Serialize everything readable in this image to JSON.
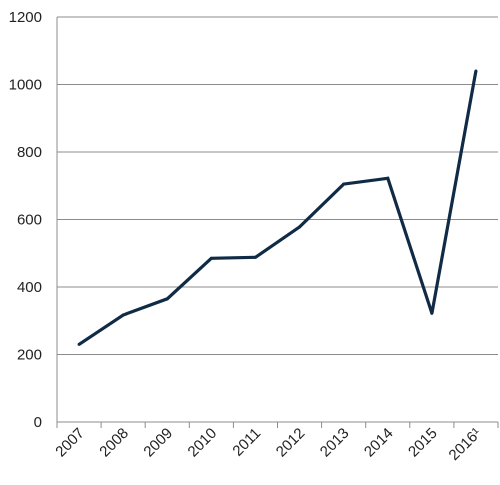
{
  "chart_data": {
    "type": "line",
    "title": "",
    "xlabel": "",
    "ylabel": "",
    "categories": [
      "2007",
      "2008",
      "2009",
      "2010",
      "2011",
      "2012",
      "2013",
      "2014",
      "2015",
      "2016¹"
    ],
    "series": [
      {
        "values": [
          230,
          317,
          365,
          485,
          488,
          578,
          705,
          722,
          322,
          1040
        ]
      }
    ],
    "ylim": [
      0,
      1200
    ],
    "yticks": [
      0,
      200,
      400,
      600,
      800,
      1000,
      1200
    ],
    "grid": true,
    "legend": "none",
    "colors": {
      "line": "#0f2b45",
      "grid": "#8c8c8c",
      "axis": "#8c8c8c",
      "text": "#222222"
    }
  }
}
